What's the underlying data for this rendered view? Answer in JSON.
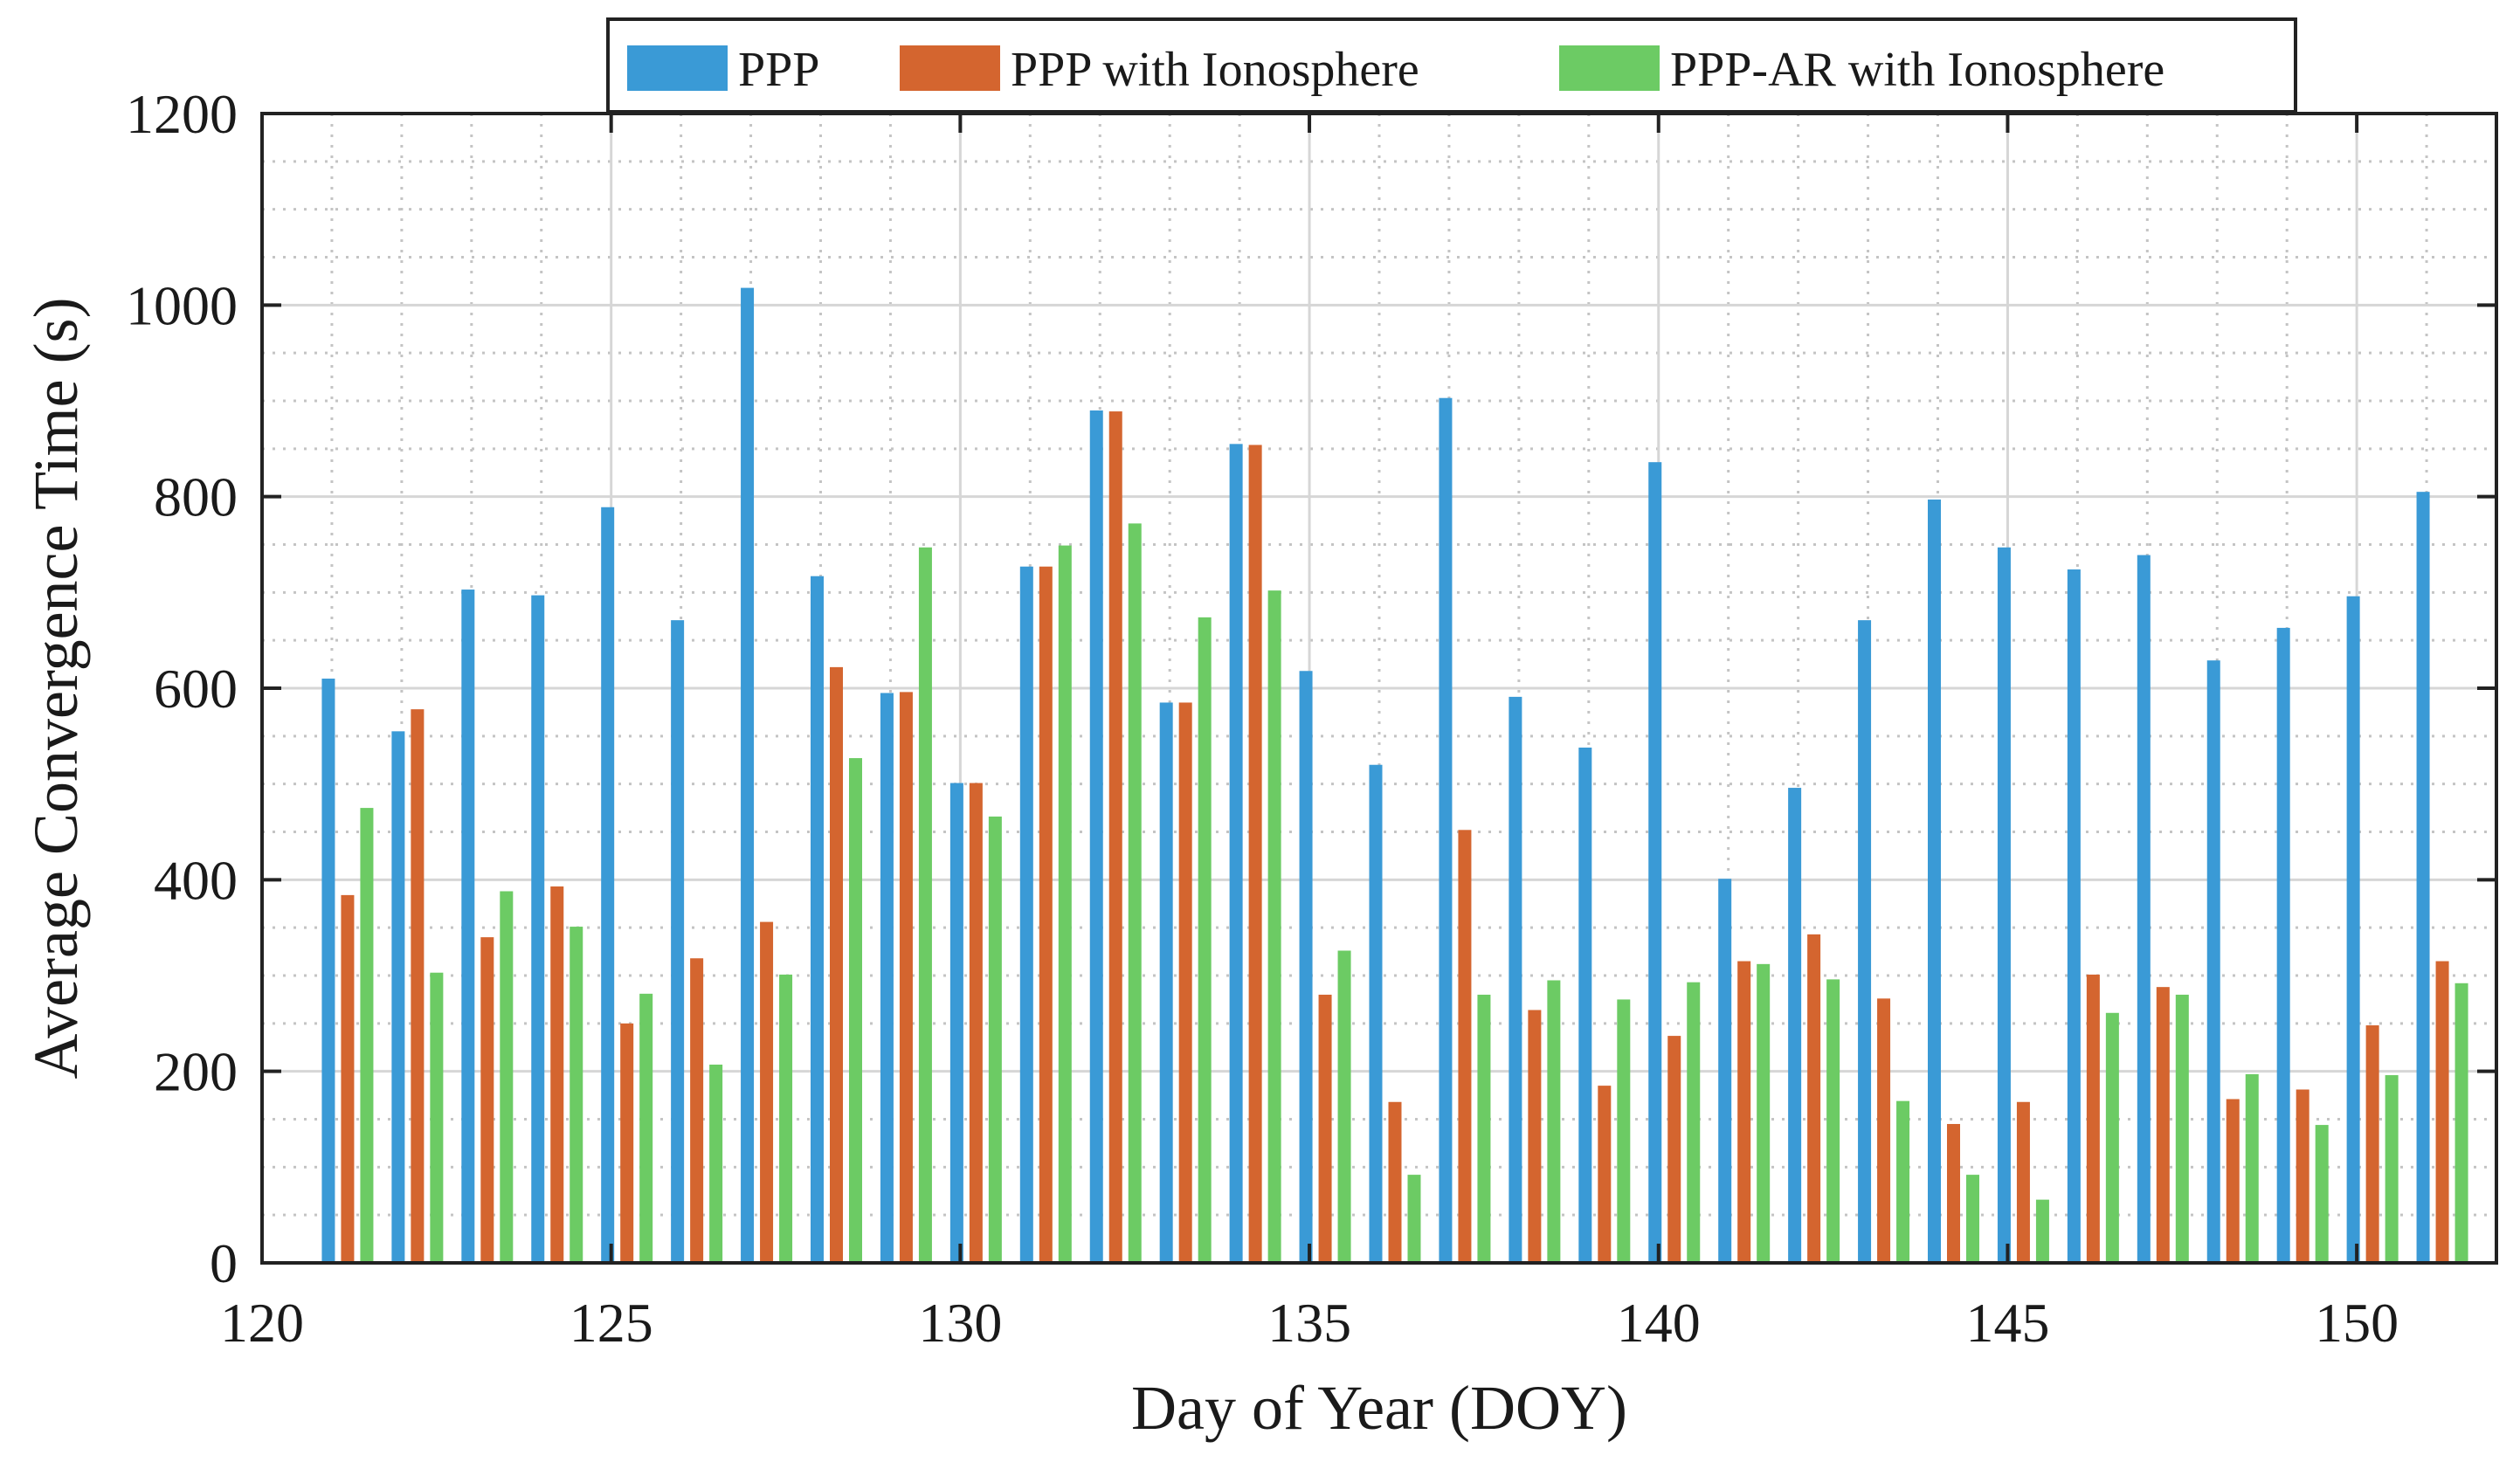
{
  "chart_data": {
    "type": "bar",
    "title": "",
    "xlabel": "Day of Year (DOY)",
    "ylabel": "Average Convergence Time (s)",
    "xlim": [
      120,
      152
    ],
    "ylim": [
      0,
      1200
    ],
    "xticks": [
      120,
      125,
      130,
      135,
      140,
      145,
      150
    ],
    "yticks": [
      0,
      200,
      400,
      600,
      800,
      1000,
      1200
    ],
    "grid": true,
    "legend_position": "top",
    "categories": [
      121,
      122,
      123,
      124,
      125,
      126,
      127,
      128,
      129,
      130,
      131,
      132,
      133,
      134,
      135,
      136,
      137,
      138,
      139,
      140,
      141,
      142,
      143,
      144,
      145,
      146,
      147,
      148,
      149,
      150,
      151
    ],
    "series": [
      {
        "name": "PPP",
        "color": "#3a9ad6",
        "values": [
          610,
          555,
          703,
          697,
          789,
          671,
          1018,
          717,
          595,
          501,
          727,
          890,
          585,
          855,
          618,
          520,
          903,
          591,
          538,
          836,
          401,
          496,
          671,
          797,
          747,
          724,
          739,
          629,
          663,
          696,
          805
        ]
      },
      {
        "name": "PPP with Ionosphere",
        "color": "#d4652f",
        "values": [
          384,
          578,
          340,
          393,
          250,
          318,
          356,
          622,
          596,
          501,
          727,
          889,
          585,
          854,
          280,
          168,
          452,
          264,
          185,
          237,
          315,
          343,
          276,
          145,
          168,
          301,
          288,
          171,
          181,
          248,
          315
        ]
      },
      {
        "name": "PPP-AR with Ionosphere",
        "color": "#6ccb64",
        "values": [
          475,
          303,
          388,
          351,
          281,
          207,
          301,
          527,
          747,
          466,
          749,
          772,
          674,
          702,
          326,
          92,
          280,
          295,
          275,
          293,
          312,
          296,
          169,
          92,
          66,
          261,
          280,
          197,
          144,
          196,
          292
        ]
      }
    ]
  }
}
